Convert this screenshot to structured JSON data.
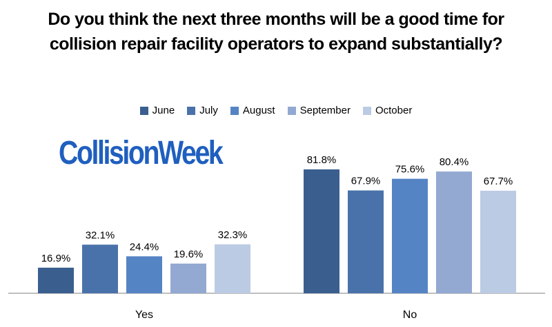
{
  "title": "Do you think the next three months will be a good time for collision repair facility operators to expand substantially?",
  "logo_text": "CollisionWeek",
  "colors": {
    "June": "#3a5f8f",
    "July": "#4a72aa",
    "August": "#5584c4",
    "September": "#93a9d2",
    "October": "#bccbe4",
    "logo": "#1f5fbf"
  },
  "chart_data": {
    "type": "bar",
    "title": "Do you think the next three months will be a good time for collision repair facility operators to expand substantially?",
    "categories": [
      "Yes",
      "No"
    ],
    "series": [
      {
        "name": "June",
        "values": [
          16.9,
          81.8
        ],
        "labels": [
          "16.9%",
          "81.8%"
        ]
      },
      {
        "name": "July",
        "values": [
          32.1,
          67.9
        ],
        "labels": [
          "32.1%",
          "67.9%"
        ]
      },
      {
        "name": "August",
        "values": [
          24.4,
          75.6
        ],
        "labels": [
          "24.4%",
          "75.6%"
        ]
      },
      {
        "name": "September",
        "values": [
          19.6,
          80.4
        ],
        "labels": [
          "19.6%",
          "80.4%"
        ]
      },
      {
        "name": "October",
        "values": [
          32.3,
          67.7
        ],
        "labels": [
          "32.3%",
          "67.7%"
        ]
      }
    ],
    "xlabel": "",
    "ylabel": "",
    "ylim": [
      0,
      100
    ],
    "grid": false,
    "legend_position": "top"
  }
}
